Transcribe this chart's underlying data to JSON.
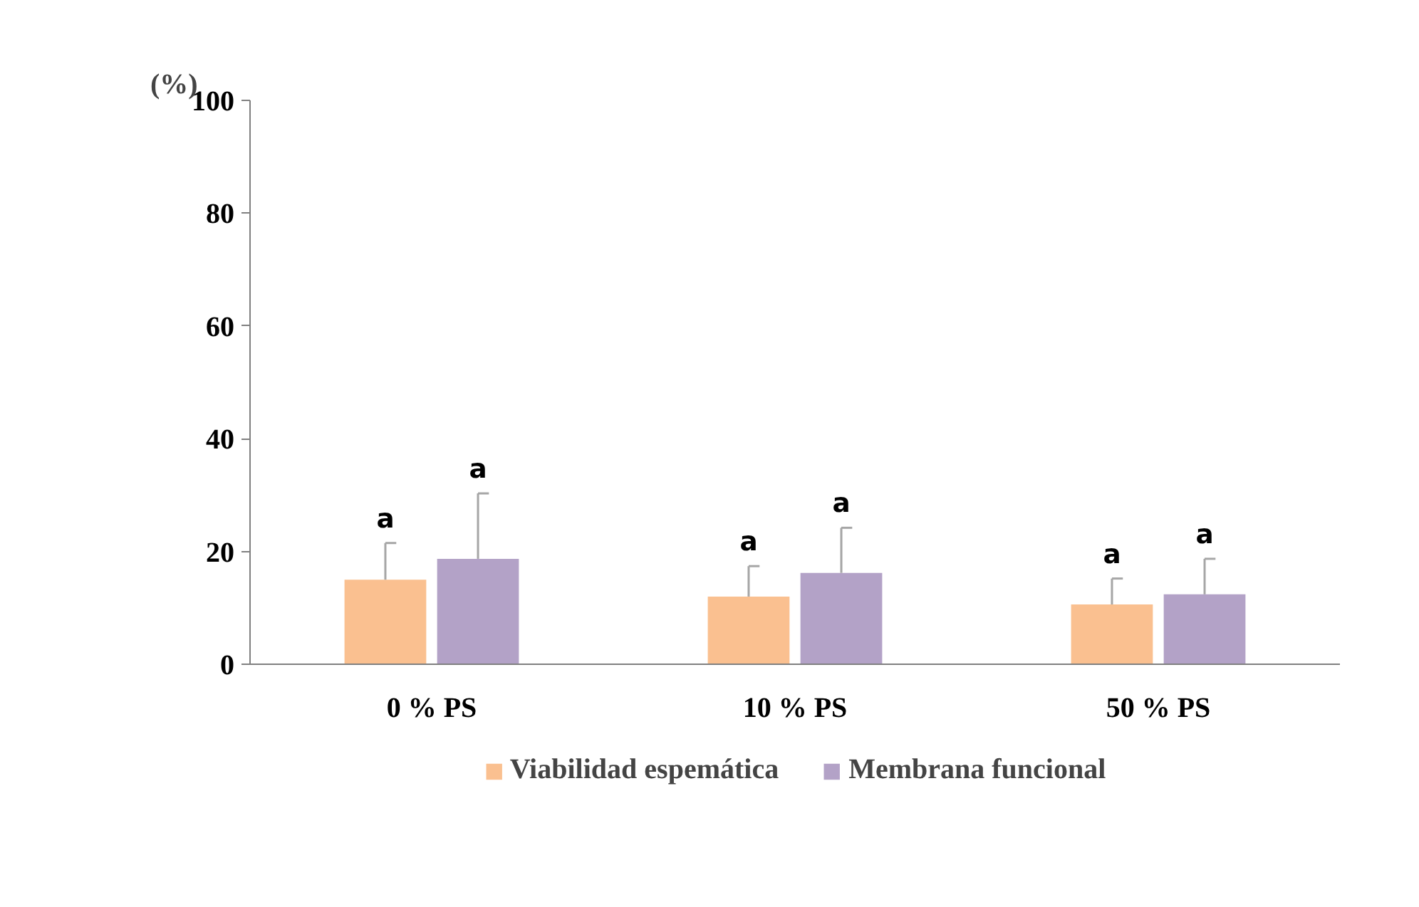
{
  "chart_data": {
    "type": "bar",
    "ylabel": "(%)",
    "categories": [
      "0 % PS",
      "10 % PS",
      "50 % PS"
    ],
    "series": [
      {
        "name": "Viabilidad espemática",
        "color": "#fac090",
        "values": [
          15,
          12,
          10.6
        ],
        "errors": [
          [
            15,
            21.5
          ],
          [
            12,
            17.4
          ],
          [
            10.6,
            15.2
          ]
        ]
      },
      {
        "name": "Membrana funcional",
        "color": "#b3a2c7",
        "values": [
          18.7,
          16.2,
          12.4
        ],
        "errors": [
          [
            18.7,
            30.3
          ],
          [
            16.2,
            24.2
          ],
          [
            12.4,
            18.7
          ]
        ]
      }
    ],
    "ylim": [
      0,
      100
    ],
    "yticks": [
      0,
      20,
      40,
      60,
      80,
      100
    ],
    "grid": false,
    "legend": "bottom",
    "annotations": [
      "a",
      "a",
      "a",
      "a",
      "a",
      "a"
    ]
  }
}
